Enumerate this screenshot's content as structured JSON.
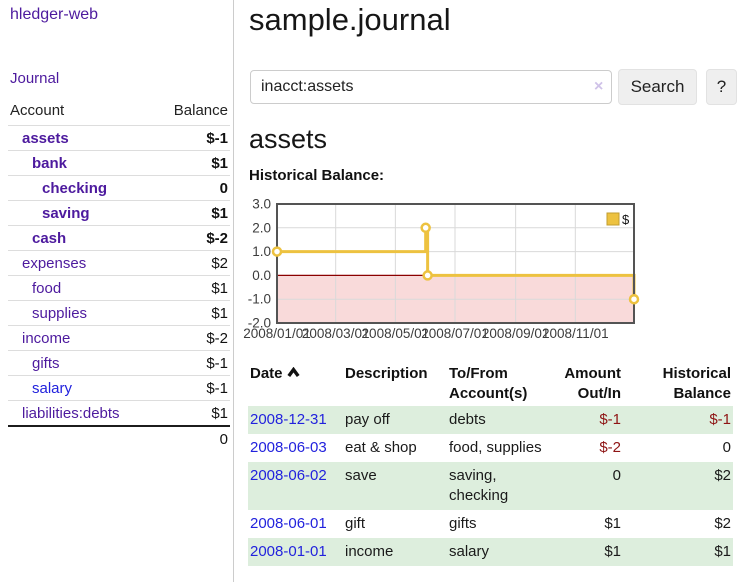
{
  "colors": {
    "link_purple": "#4d1a9e",
    "link_blue": "#2222dd",
    "negative_strong": "#8e1414",
    "negative_soft": "#c06767",
    "stripe_green": "#ddeedd",
    "chart_gold": "#edc240",
    "chart_negative_fill": "#f9dada",
    "chart_zero_line": "#8b0000"
  },
  "brand": "hledger-web",
  "nav": {
    "journal": "Journal"
  },
  "sidebar": {
    "account_header": "Account",
    "balance_header": "Balance",
    "rows": [
      {
        "name": "assets",
        "balance": "$-1",
        "depth": 1,
        "bold": true,
        "balance_style": "neg-strong",
        "name_color": "purple"
      },
      {
        "name": "bank",
        "balance": "$1",
        "depth": 2,
        "bold": true,
        "balance_style": "pos",
        "name_color": "purple"
      },
      {
        "name": "checking",
        "balance": "0",
        "depth": 3,
        "bold": true,
        "balance_style": "pos",
        "name_color": "purple"
      },
      {
        "name": "saving",
        "balance": "$1",
        "depth": 3,
        "bold": true,
        "balance_style": "pos",
        "name_color": "purple"
      },
      {
        "name": "cash",
        "balance": "$-2",
        "depth": 2,
        "bold": true,
        "balance_style": "neg-strong",
        "name_color": "purple"
      },
      {
        "name": "expenses",
        "balance": "$2",
        "depth": 1,
        "bold": false,
        "balance_style": "pos",
        "name_color": "purple"
      },
      {
        "name": "food",
        "balance": "$1",
        "depth": 2,
        "bold": false,
        "balance_style": "pos",
        "name_color": "purple"
      },
      {
        "name": "supplies",
        "balance": "$1",
        "depth": 2,
        "bold": false,
        "balance_style": "pos",
        "name_color": "purple"
      },
      {
        "name": "income",
        "balance": "$-2",
        "depth": 1,
        "bold": false,
        "balance_style": "neg-soft",
        "name_color": "purple"
      },
      {
        "name": "gifts",
        "balance": "$-1",
        "depth": 2,
        "bold": false,
        "balance_style": "neg-soft",
        "name_color": "purple"
      },
      {
        "name": "salary",
        "balance": "$-1",
        "depth": 2,
        "bold": false,
        "balance_style": "neg-soft",
        "name_color": "blue"
      },
      {
        "name": "liabilities:debts",
        "balance": "$1",
        "depth": 1,
        "bold": false,
        "balance_style": "pos",
        "name_color": "purple"
      }
    ],
    "total": "0"
  },
  "main": {
    "title": "sample.journal",
    "search": {
      "value": "inacct:assets",
      "clear_icon": "×",
      "search_button": "Search",
      "help_button": "?"
    },
    "account_heading": "assets",
    "chart_title": "Historical Balance:"
  },
  "chart_data": {
    "type": "line",
    "step": true,
    "title": "Historical Balance:",
    "series": [
      {
        "name": "$",
        "color": "#edc240",
        "points": [
          [
            "2008-01-01",
            1
          ],
          [
            "2008-06-01",
            2
          ],
          [
            "2008-06-03",
            0
          ],
          [
            "2008-12-31",
            -1
          ]
        ]
      }
    ],
    "xlim": [
      "2008-01-01",
      "2008-12-31"
    ],
    "ylim": [
      -2,
      3
    ],
    "ytick_labels": [
      "3.0",
      "2.0",
      "1.0",
      "0.0",
      "-1.0",
      "-2.0"
    ],
    "ytick_values": [
      3,
      2,
      1,
      0,
      -1,
      -2
    ],
    "xticks": [
      {
        "label": "2008/01/01",
        "date": "2008-01-01"
      },
      {
        "label": "2008/03/01",
        "date": "2008-03-01"
      },
      {
        "label": "2008/05/01",
        "date": "2008-05-01"
      },
      {
        "label": "2008/07/01",
        "date": "2008-07-01"
      },
      {
        "label": "2008/09/01",
        "date": "2008-09-01"
      },
      {
        "label": "2008/11/01",
        "date": "2008-11-01"
      }
    ],
    "grid": true,
    "legend": {
      "label": "$",
      "position": "top-right"
    },
    "negative_region_shaded": true
  },
  "register": {
    "headers": {
      "date": "Date",
      "description": "Description",
      "accounts": "To/From Account(s)",
      "amount": "Amount Out/In",
      "balance": "Historical Balance"
    },
    "rows": [
      {
        "date": "2008-12-31",
        "description": "pay off",
        "accounts": "debts",
        "amount": "$-1",
        "balance": "$-1",
        "amount_negative": true,
        "balance_negative": true
      },
      {
        "date": "2008-06-03",
        "description": "eat & shop",
        "accounts": "food, supplies",
        "amount": "$-2",
        "balance": "0",
        "amount_negative": true,
        "balance_negative": false
      },
      {
        "date": "2008-06-02",
        "description": "save",
        "accounts": "saving, checking",
        "amount": "0",
        "balance": "$2",
        "amount_negative": false,
        "balance_negative": false
      },
      {
        "date": "2008-06-01",
        "description": "gift",
        "accounts": "gifts",
        "amount": "$1",
        "balance": "$2",
        "amount_negative": false,
        "balance_negative": false
      },
      {
        "date": "2008-01-01",
        "description": "income",
        "accounts": "salary",
        "amount": "$1",
        "balance": "$1",
        "amount_negative": false,
        "balance_negative": false
      }
    ]
  }
}
